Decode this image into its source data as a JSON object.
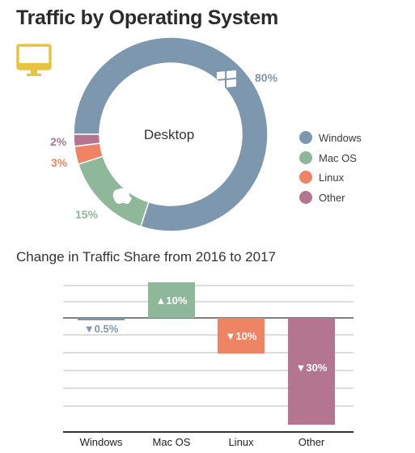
{
  "header": {
    "title": "Traffic by Operating System"
  },
  "device_icon": "desktop-monitor-icon",
  "colors": {
    "windows": "#7d97ae",
    "macos": "#8fb79a",
    "linux": "#ee8464",
    "other": "#b47590",
    "icon_yellow": "#e6c341",
    "axis": "#555555",
    "grid": "#bbbbbb"
  },
  "chart_data": [
    {
      "type": "pie",
      "variant": "donut",
      "center_label": "Desktop",
      "categories": [
        "Windows",
        "Mac OS",
        "Linux",
        "Other"
      ],
      "values": [
        80,
        15,
        3,
        2
      ],
      "value_labels": [
        "80%",
        "15%",
        "3%",
        "2%"
      ],
      "slice_icons": [
        "windows-logo-icon",
        "apple-logo-icon",
        null,
        null
      ],
      "legend": [
        "Windows",
        "Mac OS",
        "Linux",
        "Other"
      ],
      "legend_position": "right"
    },
    {
      "type": "bar",
      "title": "Change in Traffic Share from 2016 to 2017",
      "categories": [
        "Windows",
        "Mac OS",
        "Linux",
        "Other"
      ],
      "values": [
        -0.5,
        10,
        -10,
        -30
      ],
      "value_labels": [
        "▼0.5%",
        "▲10%",
        "▼10%",
        "▼30%"
      ],
      "ylim": [
        -32,
        10
      ],
      "grid": true
    }
  ]
}
